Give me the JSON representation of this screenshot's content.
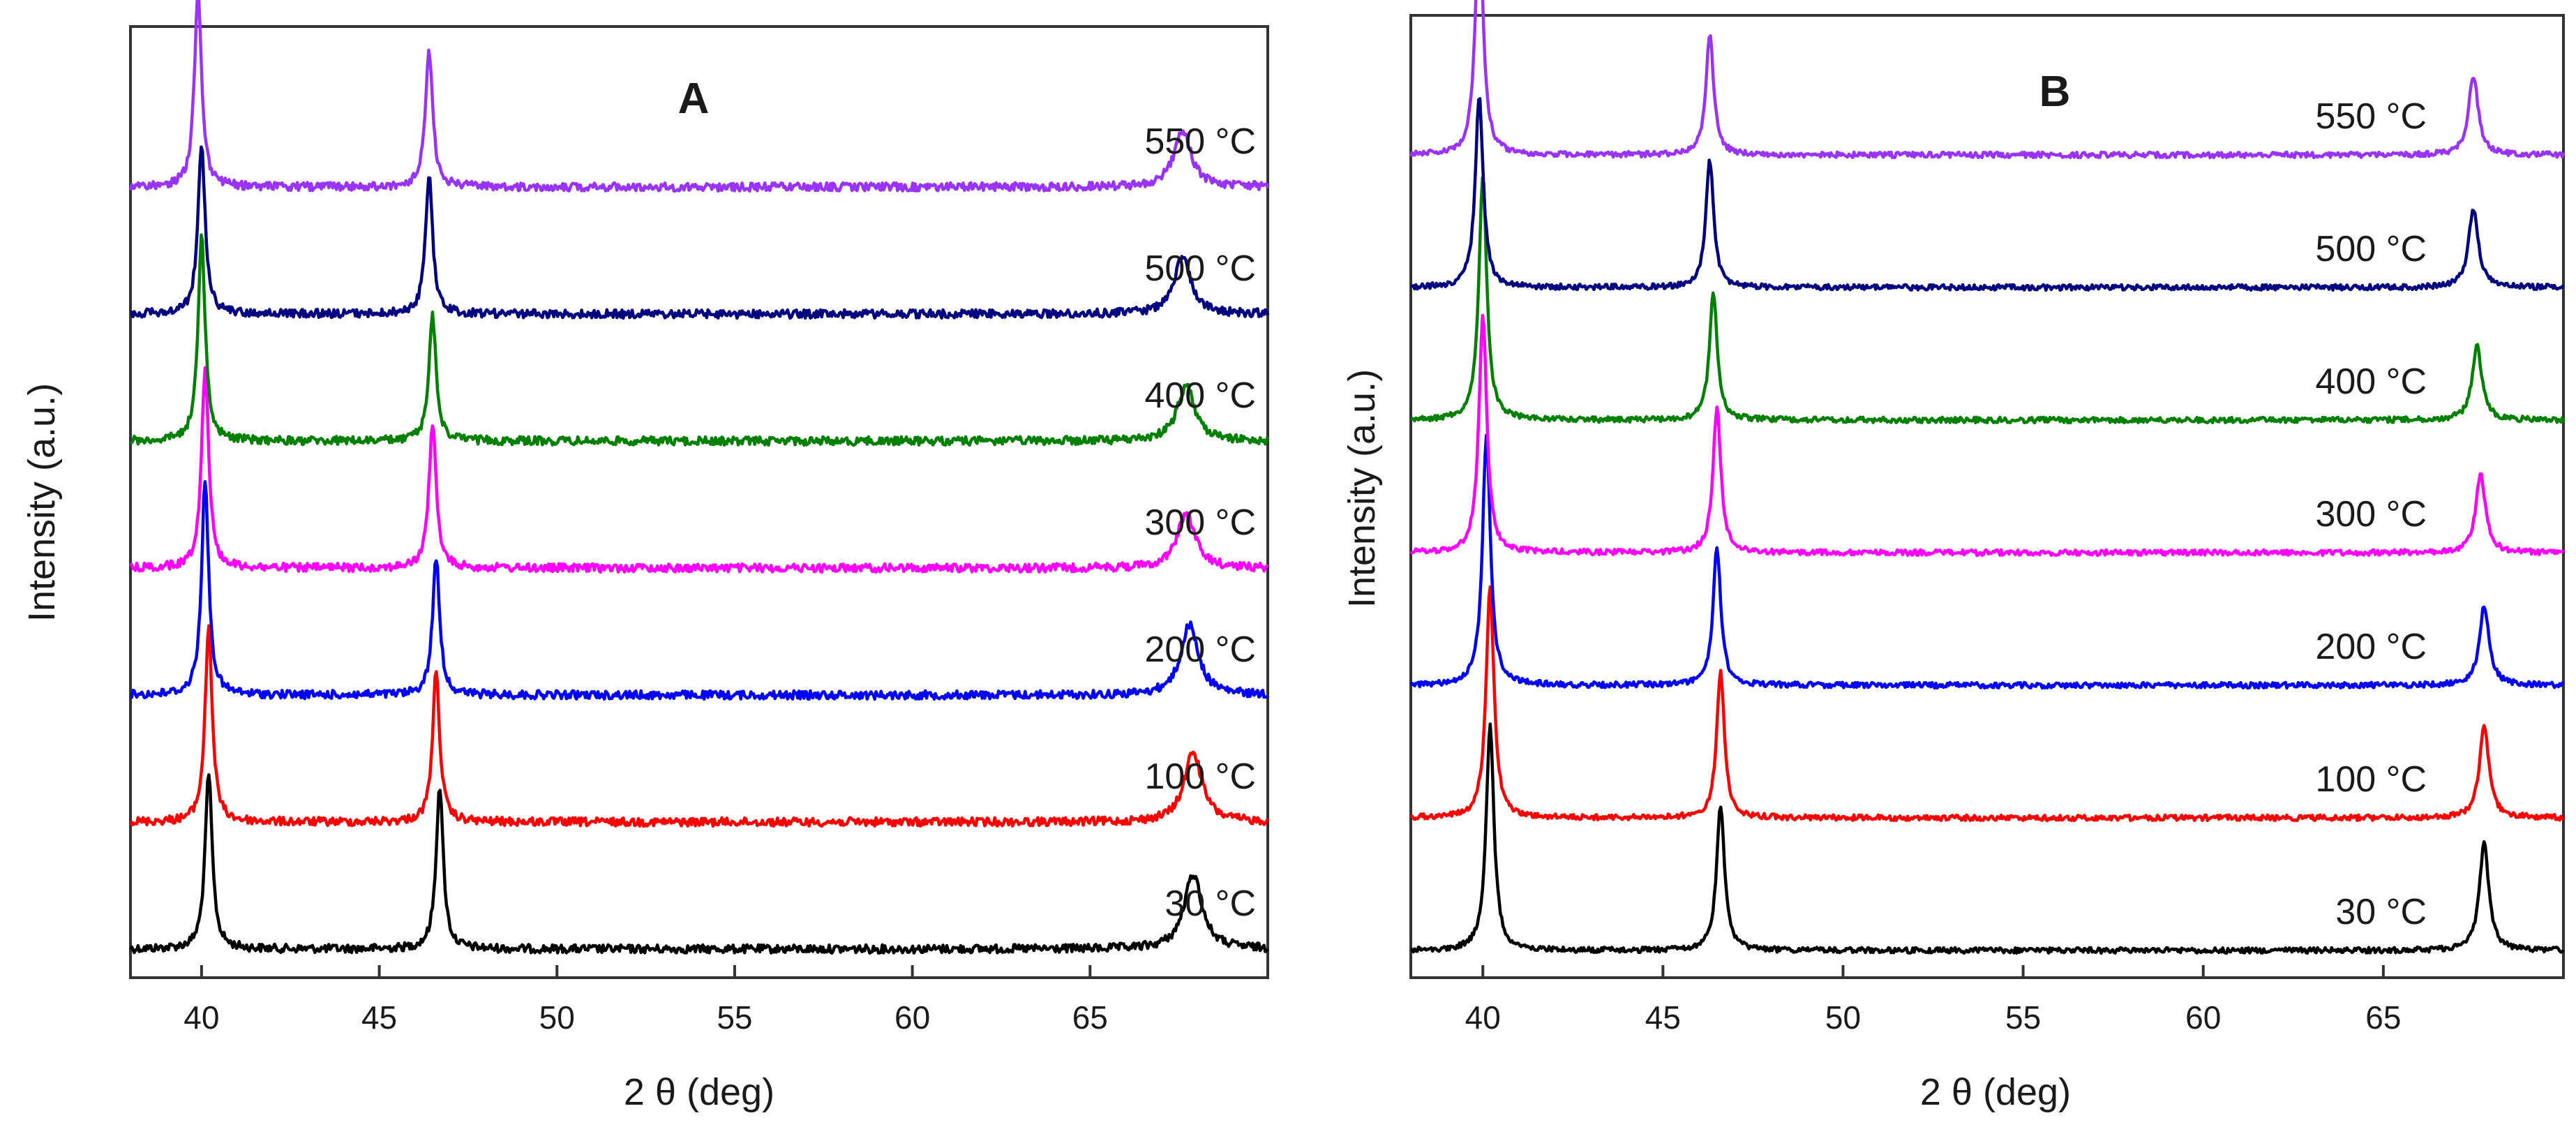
{
  "chart_data": [
    {
      "type": "line",
      "panel_label": "A",
      "title": "",
      "xlabel": "2 θ (deg)",
      "ylabel": "Intensity (a.u.)",
      "xlim": [
        38,
        70
      ],
      "xticks": [
        40,
        45,
        50,
        55,
        60,
        65
      ],
      "xtick_labels": [
        "40",
        "45",
        "50",
        "55",
        "60",
        "65"
      ],
      "ylim": [
        0,
        8
      ],
      "series": [
        {
          "name": "30 °C",
          "label": "30 °C",
          "color": "#000000",
          "offset": 0.0,
          "peaks": [
            {
              "x": 40.2,
              "h": 0.7,
              "w": 0.12
            },
            {
              "x": 46.7,
              "h": 0.65,
              "w": 0.12
            },
            {
              "x": 67.9,
              "h": 0.3,
              "w": 0.3
            }
          ]
        },
        {
          "name": "100 °C",
          "label": "100 °C",
          "color": "#ff0000",
          "offset": 1.0,
          "peaks": [
            {
              "x": 40.2,
              "h": 0.78,
              "w": 0.12
            },
            {
              "x": 46.6,
              "h": 0.6,
              "w": 0.12
            },
            {
              "x": 67.9,
              "h": 0.28,
              "w": 0.3
            }
          ]
        },
        {
          "name": "200 °C",
          "label": "200 °C",
          "color": "#0000ff",
          "offset": 2.0,
          "peaks": [
            {
              "x": 40.1,
              "h": 0.85,
              "w": 0.12
            },
            {
              "x": 46.6,
              "h": 0.55,
              "w": 0.12
            },
            {
              "x": 67.8,
              "h": 0.28,
              "w": 0.3
            }
          ]
        },
        {
          "name": "300 °C",
          "label": "300 °C",
          "color": "#ff00ff",
          "offset": 3.0,
          "peaks": [
            {
              "x": 40.1,
              "h": 0.8,
              "w": 0.12
            },
            {
              "x": 46.5,
              "h": 0.58,
              "w": 0.12
            },
            {
              "x": 67.7,
              "h": 0.22,
              "w": 0.3
            }
          ]
        },
        {
          "name": "400 °C",
          "label": "400 °C",
          "color": "#008000",
          "offset": 4.0,
          "peaks": [
            {
              "x": 40.0,
              "h": 0.82,
              "w": 0.12
            },
            {
              "x": 46.5,
              "h": 0.5,
              "w": 0.12
            },
            {
              "x": 67.7,
              "h": 0.22,
              "w": 0.3
            }
          ]
        },
        {
          "name": "500 °C",
          "label": "500 °C",
          "color": "#000080",
          "offset": 5.0,
          "peaks": [
            {
              "x": 40.0,
              "h": 0.68,
              "w": 0.12
            },
            {
              "x": 46.4,
              "h": 0.55,
              "w": 0.12
            },
            {
              "x": 67.6,
              "h": 0.22,
              "w": 0.3
            }
          ]
        },
        {
          "name": "550 °C",
          "label": "550 °C",
          "color": "#9933ff",
          "offset": 6.0,
          "peaks": [
            {
              "x": 39.9,
              "h": 0.78,
              "w": 0.12
            },
            {
              "x": 46.4,
              "h": 0.55,
              "w": 0.12
            },
            {
              "x": 67.6,
              "h": 0.22,
              "w": 0.3
            }
          ]
        }
      ]
    },
    {
      "type": "line",
      "panel_label": "B",
      "title": "",
      "xlabel": "2 θ (deg)",
      "ylabel": "Intensity (a.u.)",
      "xlim": [
        38,
        70
      ],
      "xticks": [
        40,
        45,
        50,
        55,
        60,
        65
      ],
      "xtick_labels": [
        "40",
        "45",
        "50",
        "55",
        "60",
        "65"
      ],
      "ylim": [
        0,
        8
      ],
      "series": [
        {
          "name": "30 °C",
          "label": "30 °C",
          "color": "#000000",
          "offset": 0.0,
          "peaks": [
            {
              "x": 40.2,
              "h": 0.85,
              "w": 0.13
            },
            {
              "x": 46.6,
              "h": 0.55,
              "w": 0.13
            },
            {
              "x": 67.8,
              "h": 0.4,
              "w": 0.16
            }
          ]
        },
        {
          "name": "100 °C",
          "label": "100 °C",
          "color": "#ff0000",
          "offset": 1.0,
          "peaks": [
            {
              "x": 40.2,
              "h": 0.88,
              "w": 0.13
            },
            {
              "x": 46.6,
              "h": 0.55,
              "w": 0.13
            },
            {
              "x": 67.8,
              "h": 0.35,
              "w": 0.16
            }
          ]
        },
        {
          "name": "200 °C",
          "label": "200 °C",
          "color": "#0000ff",
          "offset": 2.0,
          "peaks": [
            {
              "x": 40.1,
              "h": 0.95,
              "w": 0.13
            },
            {
              "x": 46.5,
              "h": 0.52,
              "w": 0.13
            },
            {
              "x": 67.8,
              "h": 0.3,
              "w": 0.16
            }
          ]
        },
        {
          "name": "300 °C",
          "label": "300 °C",
          "color": "#ff00ff",
          "offset": 3.0,
          "peaks": [
            {
              "x": 40.0,
              "h": 0.9,
              "w": 0.13
            },
            {
              "x": 46.5,
              "h": 0.55,
              "w": 0.13
            },
            {
              "x": 67.7,
              "h": 0.3,
              "w": 0.16
            }
          ]
        },
        {
          "name": "400 °C",
          "label": "400 °C",
          "color": "#008000",
          "offset": 4.0,
          "peaks": [
            {
              "x": 40.0,
              "h": 0.92,
              "w": 0.13
            },
            {
              "x": 46.4,
              "h": 0.48,
              "w": 0.13
            },
            {
              "x": 67.6,
              "h": 0.28,
              "w": 0.16
            }
          ]
        },
        {
          "name": "500 °C",
          "label": "500 °C",
          "color": "#000080",
          "offset": 5.0,
          "peaks": [
            {
              "x": 39.9,
              "h": 0.72,
              "w": 0.13
            },
            {
              "x": 46.3,
              "h": 0.48,
              "w": 0.13
            },
            {
              "x": 67.5,
              "h": 0.3,
              "w": 0.16
            }
          ]
        },
        {
          "name": "550 °C",
          "label": "550 °C",
          "color": "#9933ff",
          "offset": 6.0,
          "peaks": [
            {
              "x": 39.9,
              "h": 0.9,
              "w": 0.13
            },
            {
              "x": 46.3,
              "h": 0.45,
              "w": 0.13
            },
            {
              "x": 67.5,
              "h": 0.3,
              "w": 0.16
            }
          ]
        }
      ]
    }
  ]
}
